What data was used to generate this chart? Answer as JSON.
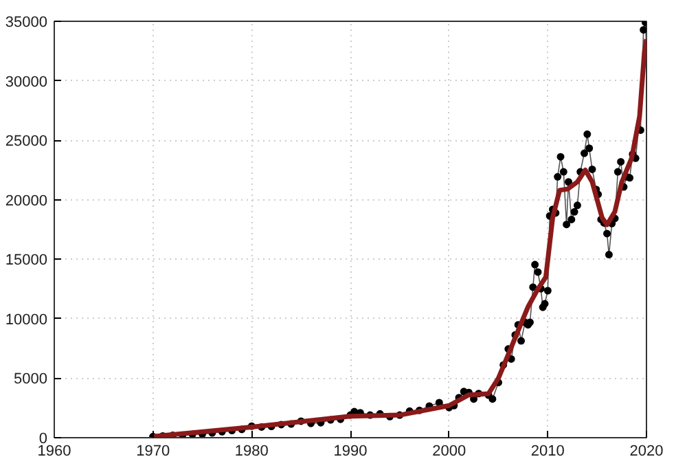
{
  "chart_data": {
    "type": "line",
    "xlim": [
      1960,
      2020
    ],
    "ylim": [
      0,
      35000
    ],
    "xticks": [
      1960,
      1970,
      1980,
      1990,
      2000,
      2010,
      2020
    ],
    "yticks": [
      0,
      5000,
      10000,
      15000,
      20000,
      25000,
      30000,
      35000
    ],
    "grid": true,
    "series": [
      {
        "color": "#000000",
        "marker": "circle",
        "x": [
          1970,
          1971,
          1972,
          1973,
          1974,
          1975,
          1976,
          1977,
          1978,
          1979,
          1980,
          1981,
          1982,
          1983,
          1984,
          1985,
          1986,
          1987,
          1988,
          1989,
          1990,
          1990.4,
          1991,
          1992,
          1993,
          1994,
          1995,
          1996,
          1997,
          1998,
          1999,
          2000,
          2000.5,
          2001,
          2001.5,
          2002,
          2002.5,
          2003,
          2004,
          2004.4,
          2005,
          2005.5,
          2006,
          2006.3,
          2006.7,
          2007,
          2007.3,
          2007.7,
          2008,
          2008.2,
          2008.5,
          2008.7,
          2009,
          2009.3,
          2009.5,
          2009.7,
          2010,
          2010.2,
          2010.5,
          2010.8,
          2011,
          2011.3,
          2011.6,
          2011.9,
          2012.1,
          2012.4,
          2012.7,
          2013,
          2013.3,
          2013.7,
          2014,
          2014.2,
          2014.5,
          2014.9,
          2015.1,
          2015.4,
          2015.7,
          2016,
          2016.2,
          2016.5,
          2016.8,
          2017.1,
          2017.4,
          2017.7,
          2018,
          2018.3,
          2018.6,
          2018.9,
          2019.2,
          2019.4,
          2019.7,
          2019.9,
          2020
        ],
        "values": [
          100,
          150,
          200,
          220,
          280,
          300,
          400,
          500,
          600,
          700,
          970,
          900,
          950,
          1100,
          1150,
          1390,
          1200,
          1260,
          1500,
          1550,
          1900,
          2190,
          2100,
          1900,
          2000,
          1770,
          1900,
          2235,
          2300,
          2660,
          2950,
          2530,
          2700,
          3370,
          3880,
          3800,
          3250,
          3710,
          3580,
          3250,
          4640,
          6110,
          7460,
          6620,
          8640,
          9490,
          8140,
          9700,
          9490,
          9700,
          12650,
          14550,
          13920,
          12520,
          10960,
          11260,
          12360,
          18640,
          19190,
          18890,
          21930,
          23610,
          22350,
          17920,
          21500,
          18340,
          18980,
          19530,
          22350,
          23910,
          25510,
          24330,
          22560,
          20870,
          20450,
          18340,
          18050,
          17160,
          15390,
          18000,
          18430,
          22350,
          23190,
          21080,
          21930,
          21840,
          23830,
          23490,
          25930,
          25850,
          34280,
          34900,
          32470
        ]
      },
      {
        "color": "#8b1a1a",
        "marker": "none",
        "x": [
          1970,
          1980,
          1990,
          1995,
          2000,
          2002,
          2004,
          2005,
          2006,
          2007,
          2008,
          2009,
          2009.8,
          2010.5,
          2011.2,
          2012,
          2013,
          2013.8,
          2014.5,
          2015.5,
          2016,
          2016.8,
          2017.5,
          2018.5,
          2019.3,
          2019.8,
          2020
        ],
        "values": [
          100,
          900,
          1800,
          1900,
          2700,
          3600,
          3700,
          5000,
          7000,
          9000,
          11000,
          12500,
          13500,
          18500,
          20800,
          20900,
          21500,
          22500,
          21500,
          18500,
          17900,
          19000,
          21500,
          23500,
          27000,
          32500,
          33500
        ]
      }
    ]
  }
}
